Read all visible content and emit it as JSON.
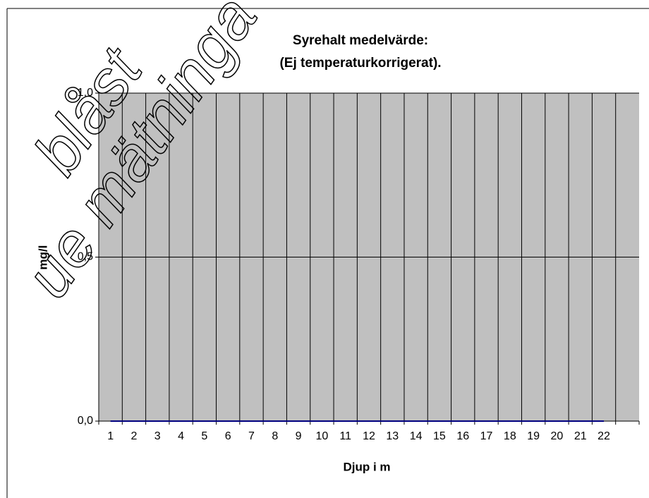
{
  "chart_data": {
    "type": "line",
    "title": "Syrehalt medelvärde:",
    "subtitle": "(Ej temperaturkorrigerat).",
    "x_label": "Djup i m",
    "y_label": "mg/l",
    "annotations": [
      "blåst",
      "ue mätninga"
    ],
    "categories": [
      "1",
      "2",
      "3",
      "4",
      "5",
      "6",
      "7",
      "8",
      "9",
      "10",
      "11",
      "12",
      "13",
      "14",
      "15",
      "16",
      "17",
      "18",
      "19",
      "20",
      "21",
      "22",
      null
    ],
    "series": [
      {
        "color": "#000080",
        "values": [
          0,
          0,
          0,
          0,
          0,
          0,
          0,
          0,
          0,
          0,
          0,
          0,
          0,
          0,
          0,
          0,
          0,
          0,
          0,
          0,
          0,
          0,
          null
        ]
      }
    ],
    "ylim": [
      0,
      1
    ],
    "yticks": [
      {
        "value": 0,
        "label": "0,0"
      },
      {
        "value": 0.5,
        "label": "0,5"
      },
      {
        "value": 1,
        "label": "1,0"
      }
    ],
    "grid": true,
    "plot_background": "#c0c0c0"
  }
}
